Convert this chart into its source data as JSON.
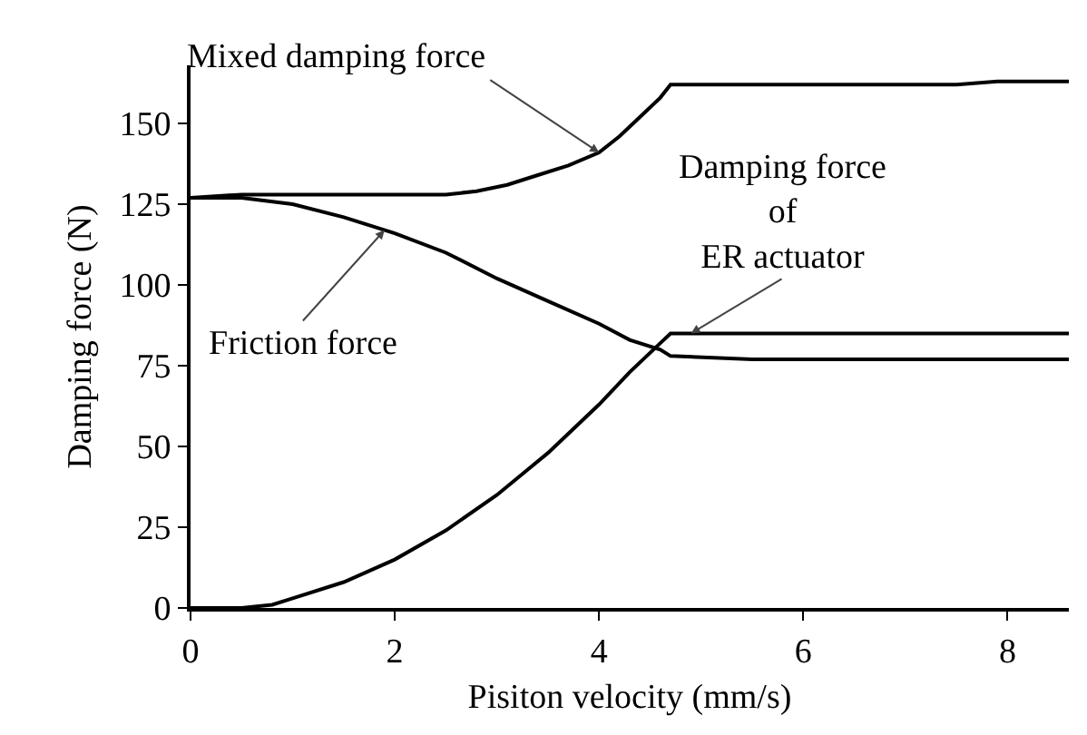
{
  "chart_data": {
    "type": "line",
    "xlabel": "Pisiton velocity (mm/s)",
    "ylabel": "Damping force (N)",
    "xlim": [
      0,
      8.6
    ],
    "ylim": [
      0,
      168
    ],
    "xticks": [
      0,
      2,
      4,
      6,
      8
    ],
    "yticks": [
      0,
      25,
      50,
      75,
      100,
      125,
      150
    ],
    "grid": false,
    "marker": "none",
    "line_style": "solid",
    "series": [
      {
        "color": "#000000",
        "x": [
          0,
          0.5,
          1,
          1.5,
          2,
          2.5,
          2.8,
          3.1,
          3.4,
          3.7,
          4.0,
          4.2,
          4.4,
          4.6,
          4.7,
          5.5,
          6.5,
          7.5,
          7.9,
          8.6
        ],
        "values": [
          127,
          128,
          128,
          128,
          128,
          128,
          129,
          131,
          134,
          137,
          141,
          146,
          152,
          158,
          162,
          162,
          162,
          162,
          163,
          163
        ]
      },
      {
        "color": "#000000",
        "x": [
          0,
          0.5,
          1,
          1.5,
          2,
          2.5,
          3,
          3.5,
          4,
          4.3,
          4.6,
          4.7,
          5.5,
          6.5,
          7.5,
          8.6
        ],
        "values": [
          127,
          127,
          125,
          121,
          116,
          110,
          102,
          95,
          88,
          83,
          80,
          78,
          77,
          77,
          77,
          77
        ]
      },
      {
        "color": "#000000",
        "x": [
          0,
          0.5,
          0.8,
          1,
          1.5,
          2,
          2.5,
          3,
          3.5,
          4,
          4.3,
          4.6,
          4.7,
          5.5,
          6.5,
          7.5,
          8.6
        ],
        "values": [
          0,
          0,
          1,
          3,
          8,
          15,
          24,
          35,
          48,
          63,
          73,
          82,
          85,
          85,
          85,
          85,
          85
        ]
      }
    ],
    "annotations": [
      {
        "text": "Mixed damping force",
        "x": 4.0,
        "y": 141
      },
      {
        "text": "Friction force",
        "x": 1.9,
        "y": 117
      },
      {
        "text": "Damping force\nof\nER actuator",
        "x": 4.9,
        "y": 85
      }
    ]
  }
}
